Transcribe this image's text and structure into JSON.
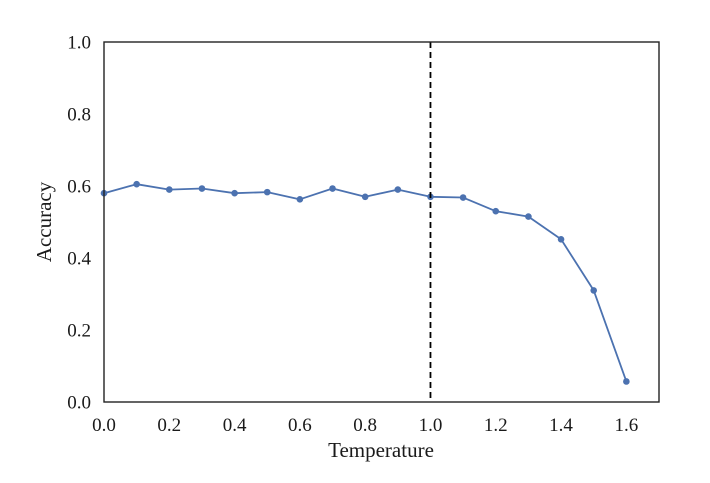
{
  "chart_data": {
    "type": "line",
    "title": "",
    "xlabel": "Temperature",
    "ylabel": "Accuracy",
    "xlim": [
      0.0,
      1.7
    ],
    "ylim": [
      0.0,
      1.0
    ],
    "xticks": [
      "0.0",
      "0.2",
      "0.4",
      "0.6",
      "0.8",
      "1.0",
      "1.2",
      "1.4",
      "1.6"
    ],
    "yticks": [
      "0.0",
      "0.2",
      "0.4",
      "0.6",
      "0.8",
      "1.0"
    ],
    "grid": false,
    "series": [
      {
        "name": "accuracy",
        "color": "#4c72b0",
        "x": [
          0.0,
          0.1,
          0.2,
          0.3,
          0.4,
          0.5,
          0.6,
          0.7,
          0.8,
          0.9,
          1.0,
          1.1,
          1.2,
          1.3,
          1.4,
          1.5,
          1.6
        ],
        "values": [
          0.58,
          0.605,
          0.59,
          0.593,
          0.58,
          0.583,
          0.563,
          0.593,
          0.57,
          0.59,
          0.57,
          0.568,
          0.53,
          0.515,
          0.452,
          0.31,
          0.057
        ]
      }
    ],
    "reference_line": {
      "orientation": "vertical",
      "x": 1.0,
      "style": "dashed",
      "color": "#000000"
    }
  }
}
